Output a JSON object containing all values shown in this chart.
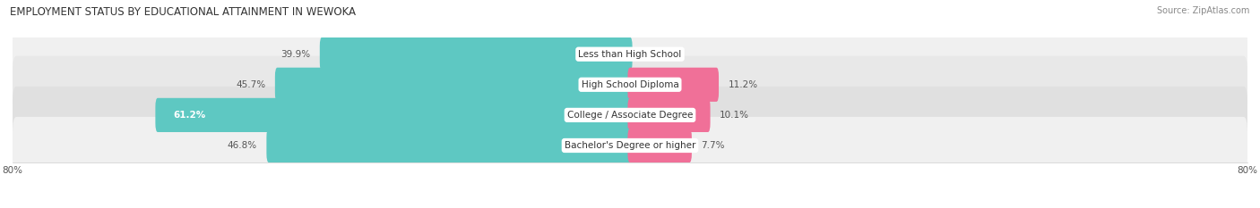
{
  "title": "EMPLOYMENT STATUS BY EDUCATIONAL ATTAINMENT IN WEWOKA",
  "source": "Source: ZipAtlas.com",
  "categories": [
    "Less than High School",
    "High School Diploma",
    "College / Associate Degree",
    "Bachelor's Degree or higher"
  ],
  "labor_force": [
    39.9,
    45.7,
    61.2,
    46.8
  ],
  "unemployed": [
    0.0,
    11.2,
    10.1,
    7.7
  ],
  "labor_color": "#5ec8c2",
  "unemployed_color": "#f07098",
  "row_bg_colors": [
    "#f0f0f0",
    "#e8e8e8",
    "#e0e0e0",
    "#f0f0f0"
  ],
  "axis_min": -80.0,
  "axis_max": 80.0,
  "title_fontsize": 8.5,
  "source_fontsize": 7,
  "bar_label_fontsize": 7.5,
  "cat_label_fontsize": 7.5,
  "legend_fontsize": 7.5,
  "axis_label_fontsize": 7.5,
  "figsize": [
    14.06,
    2.33
  ],
  "dpi": 100
}
